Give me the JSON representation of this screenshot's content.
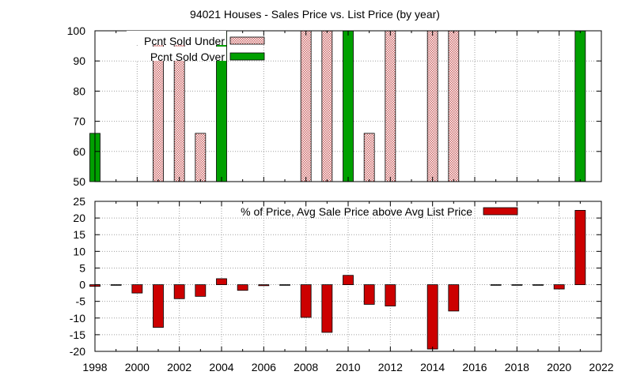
{
  "chart_data": [
    {
      "type": "bar",
      "title": "94021 Houses - Sales Price vs. List Price (by year)",
      "ylim": [
        50,
        100
      ],
      "yticks": [
        50,
        60,
        70,
        80,
        90,
        100
      ],
      "xlim": [
        1998,
        2022
      ],
      "grid": true,
      "legend_position": "top-left",
      "series": [
        {
          "name": "Pcnt Sold Under",
          "color": "#cc6666",
          "pattern": "checker",
          "points": [
            {
              "x": 2001,
              "y": 100
            },
            {
              "x": 2002,
              "y": 100
            },
            {
              "x": 2003,
              "y": 66
            },
            {
              "x": 2008,
              "y": 100
            },
            {
              "x": 2009,
              "y": 100
            },
            {
              "x": 2011,
              "y": 66
            },
            {
              "x": 2012,
              "y": 100
            },
            {
              "x": 2014,
              "y": 100
            },
            {
              "x": 2015,
              "y": 100
            }
          ]
        },
        {
          "name": "Pcnt Sold Over",
          "color": "#00a000",
          "pattern": "solid",
          "points": [
            {
              "x": 1998,
              "y": 66
            },
            {
              "x": 2004,
              "y": 100
            },
            {
              "x": 2010,
              "y": 100
            },
            {
              "x": 2021,
              "y": 100
            }
          ]
        }
      ]
    },
    {
      "type": "bar",
      "ylim": [
        -20,
        25
      ],
      "yticks": [
        -20,
        -15,
        -10,
        -5,
        0,
        5,
        10,
        15,
        20,
        25
      ],
      "xlim": [
        1998,
        2022
      ],
      "xticks": [
        1998,
        2000,
        2002,
        2004,
        2006,
        2008,
        2010,
        2012,
        2014,
        2016,
        2018,
        2020,
        2022
      ],
      "grid": true,
      "legend_position": "top-right",
      "series": [
        {
          "name": "% of Price, Avg Sale Price above Avg List Price",
          "color": "#cc0000",
          "points": [
            {
              "x": 1998,
              "y": -0.5
            },
            {
              "x": 1999,
              "y": 0
            },
            {
              "x": 2000,
              "y": -2.5
            },
            {
              "x": 2001,
              "y": -12.8
            },
            {
              "x": 2002,
              "y": -4.2
            },
            {
              "x": 2003,
              "y": -3.5
            },
            {
              "x": 2004,
              "y": 1.8
            },
            {
              "x": 2005,
              "y": -1.7
            },
            {
              "x": 2006,
              "y": -0.3
            },
            {
              "x": 2007,
              "y": 0
            },
            {
              "x": 2008,
              "y": -9.8
            },
            {
              "x": 2009,
              "y": -14.3
            },
            {
              "x": 2010,
              "y": 2.8
            },
            {
              "x": 2011,
              "y": -5.9
            },
            {
              "x": 2012,
              "y": -6.4
            },
            {
              "x": 2014,
              "y": -19.3
            },
            {
              "x": 2015,
              "y": -7.9
            },
            {
              "x": 2017,
              "y": 0
            },
            {
              "x": 2018,
              "y": 0
            },
            {
              "x": 2019,
              "y": 0
            },
            {
              "x": 2020,
              "y": -1.3
            },
            {
              "x": 2021,
              "y": 22.3
            }
          ]
        }
      ]
    }
  ]
}
